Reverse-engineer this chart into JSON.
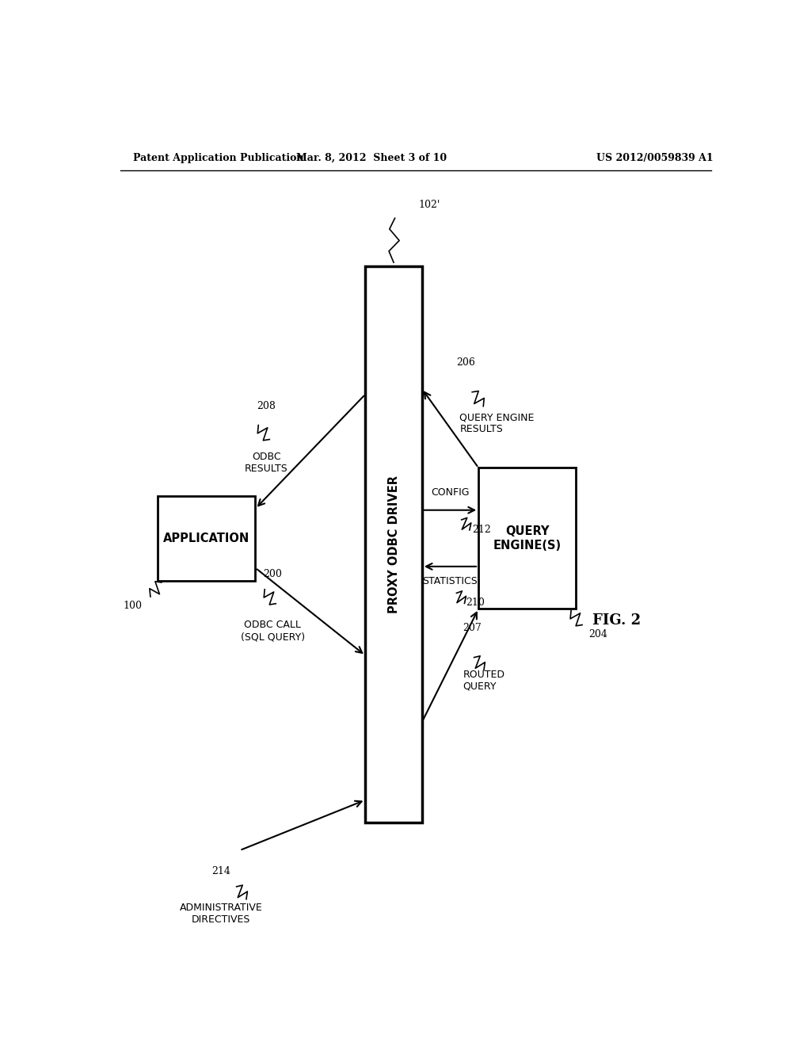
{
  "bg_color": "#ffffff",
  "header_left": "Patent Application Publication",
  "header_mid": "Mar. 8, 2012  Sheet 3 of 10",
  "header_right": "US 2012/0059839 A1",
  "fig_label": "FIG. 2",
  "proxy_label": "PROXY ODBC DRIVER",
  "proxy_ref": "102'",
  "app_label": "APPLICATION",
  "app_ref": "100",
  "qe_label": "QUERY\nENGINE(S)",
  "qe_ref": "204",
  "arrow_odbc_results_label": "ODBC\nRESULTS",
  "arrow_odbc_results_ref": "208",
  "arrow_qe_results_label": "QUERY ENGINE\nRESULTS",
  "arrow_qe_results_ref": "206",
  "arrow_config_label": "CONFIG",
  "arrow_config_ref": "212",
  "arrow_stats_label": "STATISTICS",
  "arrow_stats_ref": "210",
  "arrow_odbc_call_label": "ODBC CALL\n(SQL QUERY)",
  "arrow_odbc_call_ref": "200",
  "arrow_routed_label": "ROUTED\nQUERY",
  "arrow_routed_ref": "207",
  "arrow_admin_label": "ADMINISTRATIVE\nDIRECTIVES",
  "arrow_admin_ref": "214"
}
